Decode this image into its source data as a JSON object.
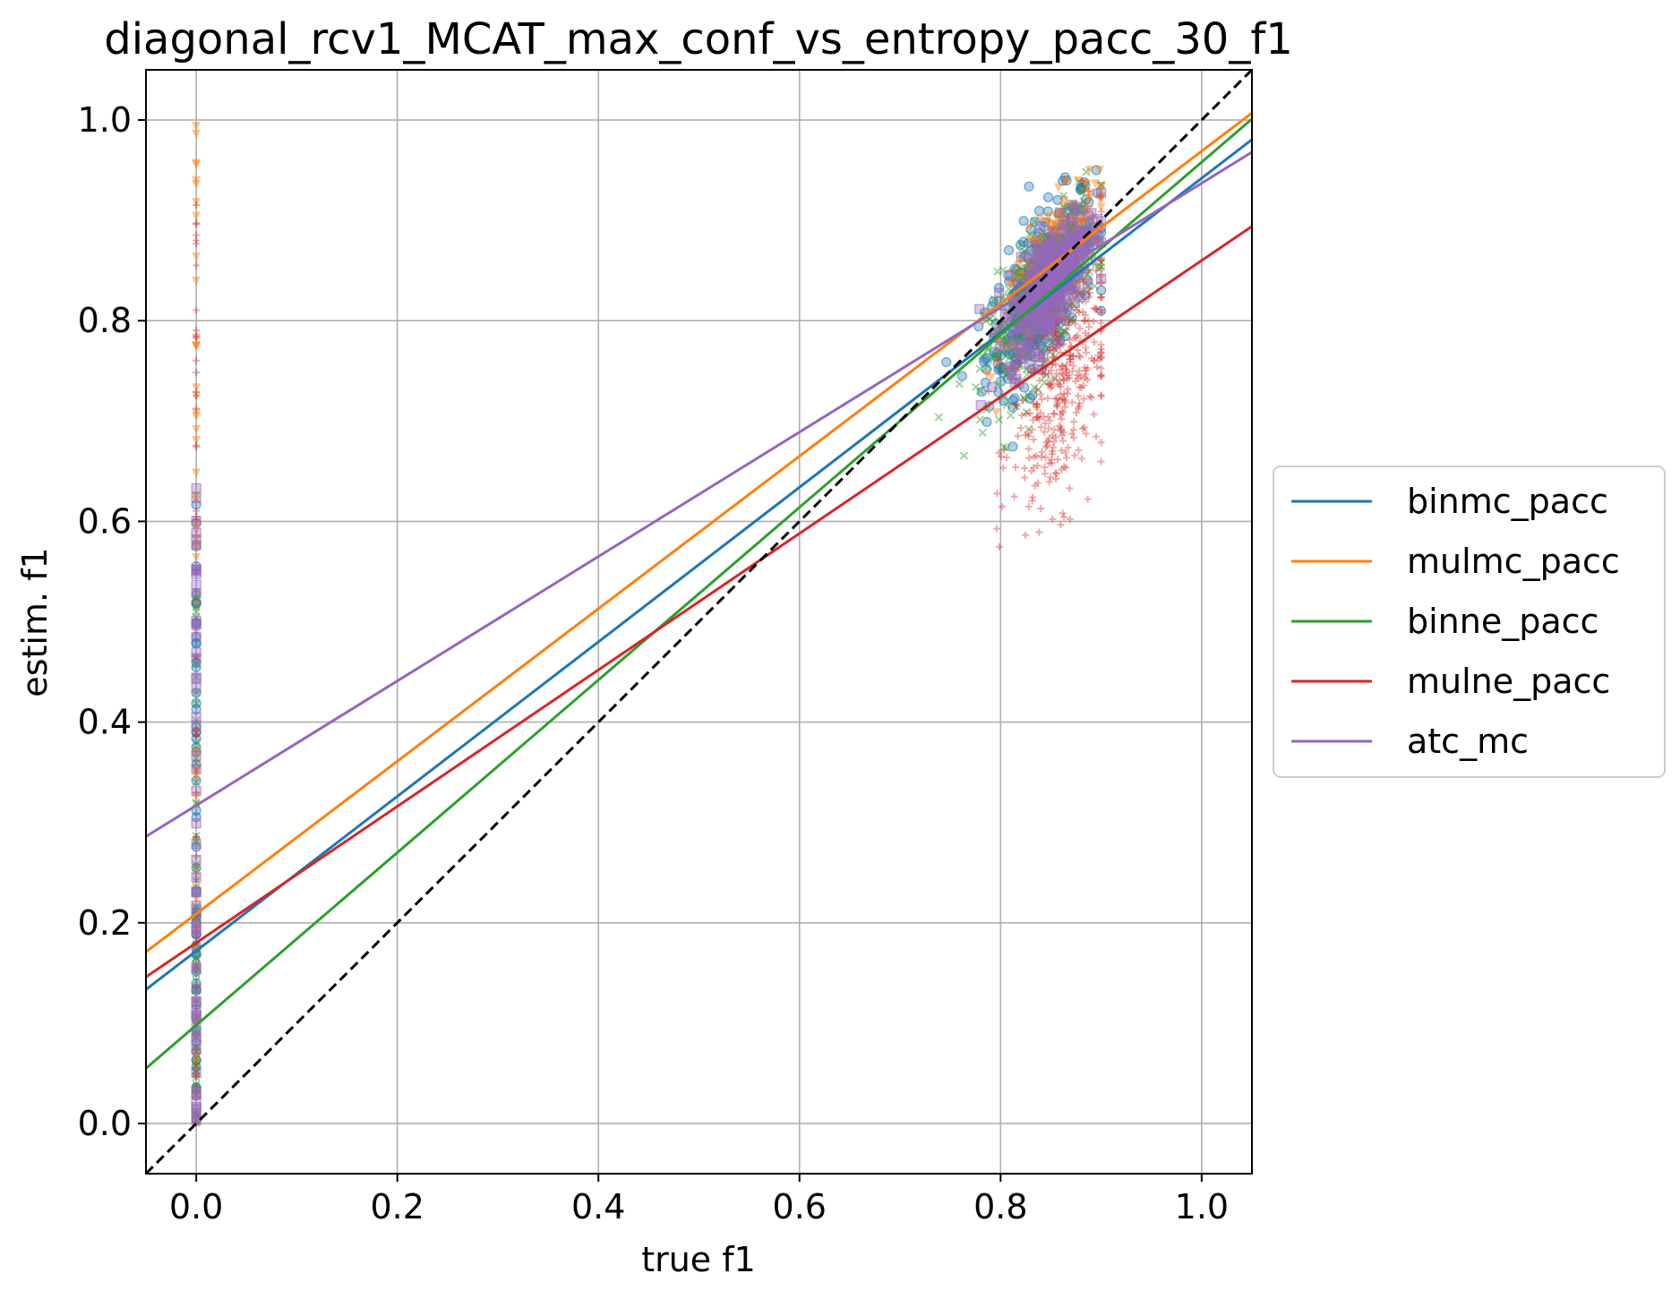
{
  "chart_data": {
    "type": "scatter",
    "title": "diagonal_rcv1_MCAT_max_conf_vs_entropy_pacc_30_f1",
    "xlabel": "true f1",
    "ylabel": "estim. f1",
    "xlim": [
      -0.05,
      1.05
    ],
    "ylim": [
      -0.05,
      1.05
    ],
    "xticks": [
      0.0,
      0.2,
      0.4,
      0.6,
      0.8,
      1.0
    ],
    "yticks": [
      0.0,
      0.2,
      0.4,
      0.6,
      0.8,
      1.0
    ],
    "xtick_labels": [
      "0.0",
      "0.2",
      "0.4",
      "0.6",
      "0.8",
      "1.0"
    ],
    "ytick_labels": [
      "0.0",
      "0.2",
      "0.4",
      "0.6",
      "0.8",
      "1.0"
    ],
    "grid": true,
    "legend_position": "center-right-outside",
    "reference_line": {
      "name": "diagonal",
      "slope": 1.0,
      "intercept": 0.0,
      "color": "#000000",
      "style": "dashed"
    },
    "series": [
      {
        "name": "binmc_pacc",
        "color": "#1f77b4",
        "marker": "circle",
        "fit": {
          "slope": 0.77,
          "intercept": 0.172
        },
        "cluster": {
          "x_center": 0.84,
          "y_center": 0.83,
          "x_spread": 0.045,
          "y_spread": 0.06
        },
        "zero_column": {
          "x": 0.0,
          "y_range": [
            0.0,
            0.62
          ]
        }
      },
      {
        "name": "mulmc_pacc",
        "color": "#ff7f0e",
        "marker": "triangle-down",
        "fit": {
          "slope": 0.76,
          "intercept": 0.209
        },
        "cluster": {
          "x_center": 0.85,
          "y_center": 0.85,
          "x_spread": 0.04,
          "y_spread": 0.05
        },
        "zero_column": {
          "x": 0.0,
          "y_range": [
            0.0,
            1.0
          ]
        }
      },
      {
        "name": "binne_pacc",
        "color": "#2ca02c",
        "marker": "x",
        "fit": {
          "slope": 0.86,
          "intercept": 0.098
        },
        "cluster": {
          "x_center": 0.84,
          "y_center": 0.82,
          "x_spread": 0.045,
          "y_spread": 0.06
        },
        "zero_column": {
          "x": 0.0,
          "y_range": [
            0.0,
            0.55
          ]
        }
      },
      {
        "name": "mulne_pacc",
        "color": "#d62728",
        "marker": "plus",
        "fit": {
          "slope": 0.68,
          "intercept": 0.18
        },
        "cluster": {
          "x_center": 0.86,
          "y_center": 0.74,
          "x_spread": 0.04,
          "y_spread": 0.1
        },
        "zero_column": {
          "x": 0.0,
          "y_range": [
            0.0,
            0.93
          ]
        }
      },
      {
        "name": "atc_mc",
        "color": "#9467bd",
        "marker": "square",
        "fit": {
          "slope": 0.62,
          "intercept": 0.317
        },
        "cluster": {
          "x_center": 0.85,
          "y_center": 0.84,
          "x_spread": 0.035,
          "y_spread": 0.045
        },
        "zero_column": {
          "x": 0.0,
          "y_range": [
            0.0,
            0.64
          ]
        }
      }
    ]
  }
}
